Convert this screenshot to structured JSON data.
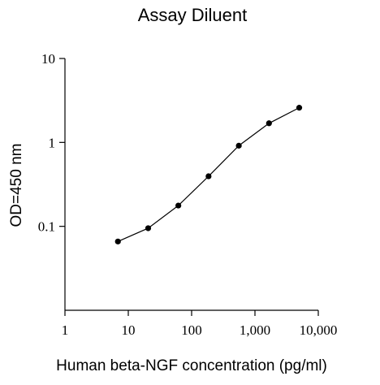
{
  "chart_data": {
    "type": "line",
    "title": "Assay Diluent",
    "xlabel": "Human beta-NGF concentration (pg/ml)",
    "ylabel": "OD=450 nm",
    "x_scale": "log",
    "y_scale": "log",
    "xlim": [
      1,
      10000
    ],
    "ylim": [
      0.01,
      10
    ],
    "x_ticks": [
      {
        "value": 1,
        "label": "1"
      },
      {
        "value": 10,
        "label": "10"
      },
      {
        "value": 100,
        "label": "100"
      },
      {
        "value": 1000,
        "label": "1,000"
      },
      {
        "value": 10000,
        "label": "10,000"
      }
    ],
    "y_ticks": [
      {
        "value": 0.1,
        "label": "0.1"
      },
      {
        "value": 1,
        "label": "1"
      },
      {
        "value": 10,
        "label": "10"
      }
    ],
    "grid": false,
    "legend": "none",
    "series": [
      {
        "x": [
          6.86,
          20.6,
          61.7,
          185,
          556,
          1667,
          5000
        ],
        "y": [
          0.066,
          0.095,
          0.177,
          0.395,
          0.914,
          1.69,
          2.59
        ],
        "color": "#000000"
      }
    ]
  }
}
